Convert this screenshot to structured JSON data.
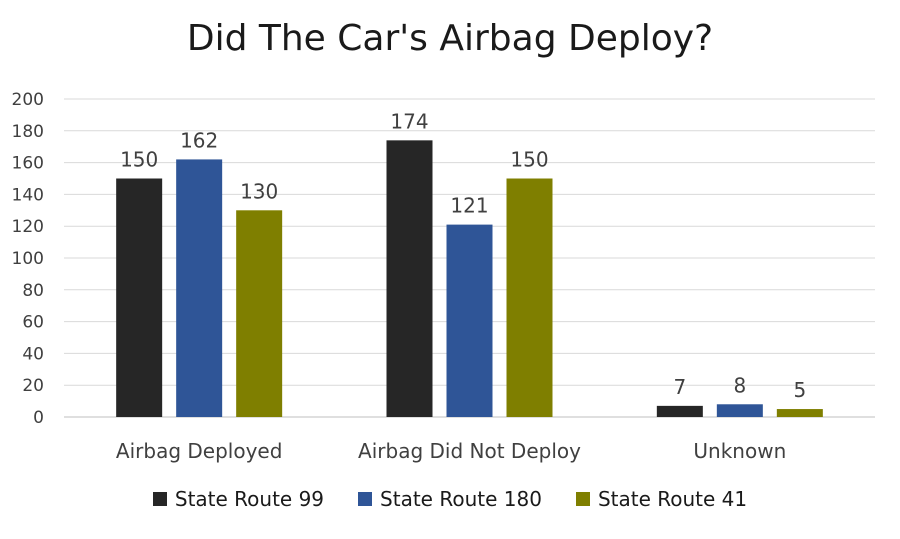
{
  "chart_data": {
    "type": "bar",
    "title": "Did The Car's Airbag Deploy?",
    "categories": [
      "Airbag Deployed",
      "Airbag Did Not Deploy",
      "Unknown"
    ],
    "series": [
      {
        "name": "State Route 99",
        "values": [
          150,
          174,
          7
        ],
        "color": "#262626"
      },
      {
        "name": "State Route 180",
        "values": [
          162,
          121,
          8
        ],
        "color": "#2f5597"
      },
      {
        "name": "State Route 41",
        "values": [
          130,
          150,
          5
        ],
        "color": "#7f7f00"
      }
    ],
    "ylim": [
      0,
      200
    ],
    "yticks": [
      0,
      20,
      40,
      60,
      80,
      100,
      120,
      140,
      160,
      180,
      200
    ],
    "grid": true,
    "legend_position": "bottom",
    "data_labels": true
  }
}
